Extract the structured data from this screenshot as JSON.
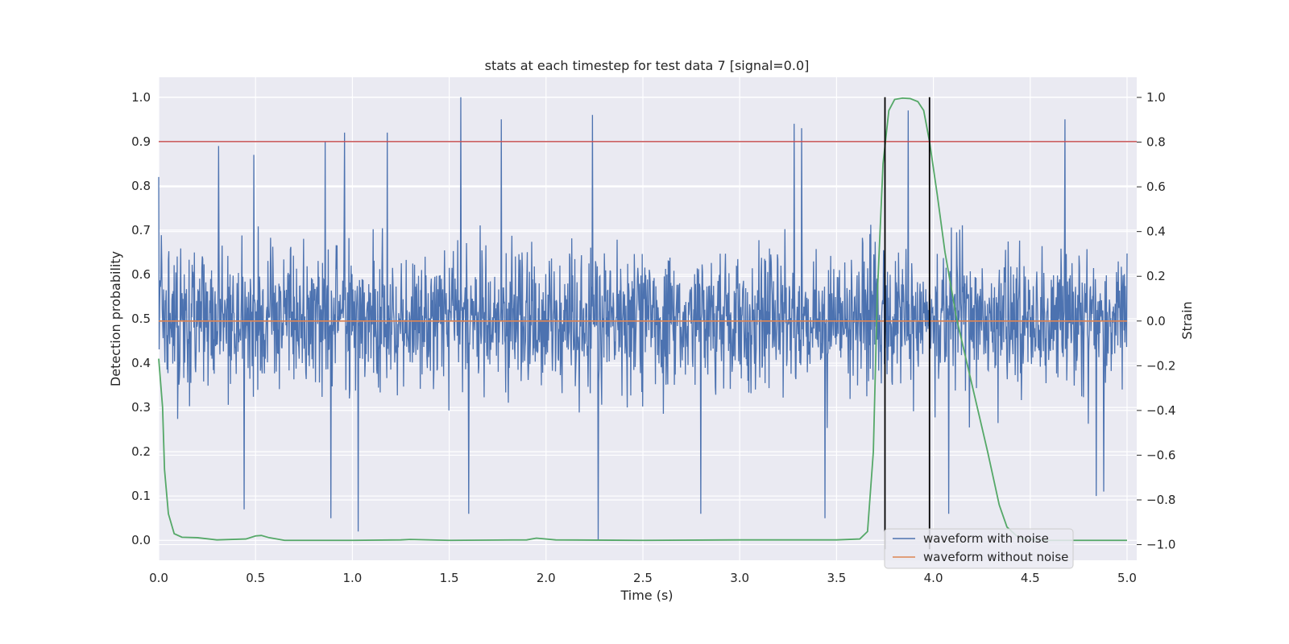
{
  "chart_data": {
    "type": "line",
    "title": "stats at each timestep for test data 7 [signal=0.0]",
    "xlabel": "Time (s)",
    "ylabel": "Detection probability",
    "y2label": "Strain",
    "xlim": [
      0.0,
      5.05
    ],
    "ylim": [
      -0.045,
      1.045
    ],
    "y2lim": [
      -1.07,
      1.09
    ],
    "x_ticks": [
      0.0,
      0.5,
      1.0,
      1.5,
      2.0,
      2.5,
      3.0,
      3.5,
      4.0,
      4.5,
      5.0
    ],
    "x_tick_labels": [
      "0.0",
      "0.5",
      "1.0",
      "1.5",
      "2.0",
      "2.5",
      "3.0",
      "3.5",
      "4.0",
      "4.5",
      "5.0"
    ],
    "y_ticks": [
      0.0,
      0.1,
      0.2,
      0.3,
      0.4,
      0.5,
      0.6,
      0.7,
      0.8,
      0.9,
      1.0
    ],
    "y_tick_labels": [
      "0.0",
      "0.1",
      "0.2",
      "0.3",
      "0.4",
      "0.5",
      "0.6",
      "0.7",
      "0.8",
      "0.9",
      "1.0"
    ],
    "y2_ticks": [
      -1.0,
      -0.8,
      -0.6,
      -0.4,
      -0.2,
      0.0,
      0.2,
      0.4,
      0.6,
      0.8,
      1.0
    ],
    "y2_tick_labels": [
      "−1.0",
      "−0.8",
      "−0.6",
      "−0.4",
      "−0.2",
      "0.0",
      "0.2",
      "0.4",
      "0.6",
      "0.8",
      "1.0"
    ],
    "grid": true,
    "legend_position": "lower-right",
    "colors": {
      "noisy": "#4c72b0",
      "clean": "#dd8452",
      "probability": "#55a868",
      "threshold": "#c44e52",
      "markers": "#000000",
      "background": "#eaeaf2",
      "grid": "#ffffff"
    },
    "series": [
      {
        "name": "waveform with noise",
        "axis": "right",
        "style": "noise",
        "duration": 5.0,
        "amplitude_range": [
          -1.0,
          1.0
        ]
      },
      {
        "name": "waveform without noise",
        "axis": "right",
        "x": [
          0.0,
          5.0
        ],
        "y": [
          0.0,
          0.0
        ]
      },
      {
        "axis": "left",
        "x": [
          0.0,
          0.02,
          0.03,
          0.05,
          0.08,
          0.12,
          0.2,
          0.3,
          0.45,
          0.5,
          0.53,
          0.57,
          0.65,
          1.0,
          1.25,
          1.3,
          1.5,
          1.9,
          1.95,
          2.05,
          2.5,
          3.0,
          3.5,
          3.62,
          3.66,
          3.69,
          3.71,
          3.74,
          3.77,
          3.8,
          3.84,
          3.88,
          3.92,
          3.95,
          3.98,
          4.02,
          4.06,
          4.12,
          4.2,
          4.28,
          4.34,
          4.38,
          4.43,
          4.48,
          4.6,
          5.0
        ],
        "y": [
          0.41,
          0.3,
          0.16,
          0.06,
          0.015,
          0.007,
          0.006,
          0.001,
          0.003,
          0.01,
          0.011,
          0.006,
          0.0,
          0.0,
          0.001,
          0.002,
          0.0,
          0.001,
          0.005,
          0.001,
          0.0,
          0.001,
          0.001,
          0.003,
          0.02,
          0.2,
          0.55,
          0.85,
          0.97,
          0.995,
          0.998,
          0.997,
          0.99,
          0.97,
          0.9,
          0.78,
          0.65,
          0.5,
          0.35,
          0.2,
          0.08,
          0.03,
          0.01,
          0.002,
          0.0,
          0.0
        ]
      },
      {
        "axis": "left",
        "x": [
          0.0,
          5.05
        ],
        "y": [
          0.9,
          0.9
        ]
      }
    ],
    "vertical_markers": [
      3.75,
      3.98
    ],
    "marker_range": [
      -0.02,
      1.0
    ],
    "noise_spikes": [
      {
        "x": 0.0,
        "y": 0.82
      },
      {
        "x": 0.31,
        "y": 0.89
      },
      {
        "x": 0.49,
        "y": 0.87
      },
      {
        "x": 0.86,
        "y": 0.9
      },
      {
        "x": 0.96,
        "y": 0.92
      },
      {
        "x": 1.18,
        "y": 0.92
      },
      {
        "x": 1.56,
        "y": 1.0
      },
      {
        "x": 1.77,
        "y": 0.95
      },
      {
        "x": 2.24,
        "y": 0.96
      },
      {
        "x": 3.28,
        "y": 0.94
      },
      {
        "x": 3.32,
        "y": 0.93
      },
      {
        "x": 3.87,
        "y": 0.97
      },
      {
        "x": 4.68,
        "y": 0.95
      },
      {
        "x": 0.44,
        "y": 0.07
      },
      {
        "x": 0.89,
        "y": 0.05
      },
      {
        "x": 1.03,
        "y": 0.02
      },
      {
        "x": 1.6,
        "y": 0.06
      },
      {
        "x": 2.27,
        "y": 0.0
      },
      {
        "x": 2.8,
        "y": 0.06
      },
      {
        "x": 3.44,
        "y": 0.05
      },
      {
        "x": 4.08,
        "y": 0.06
      },
      {
        "x": 4.84,
        "y": 0.1
      },
      {
        "x": 4.88,
        "y": 0.11
      }
    ]
  }
}
